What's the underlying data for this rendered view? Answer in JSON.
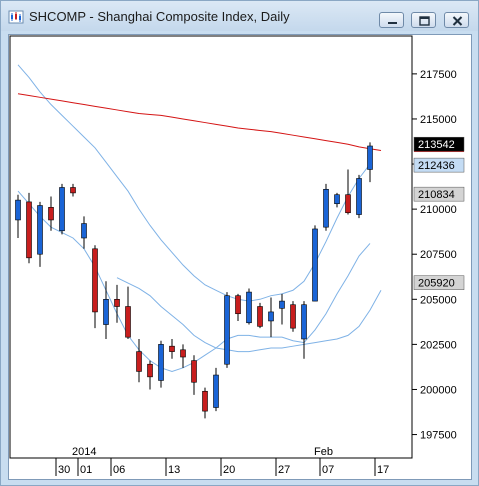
{
  "window": {
    "title": "SHCOMP - Shanghai Composite Index, Daily",
    "buttons": {
      "minimize": "minimize-icon",
      "restore": "restore-icon",
      "close": "close-icon"
    }
  },
  "chart_data": {
    "type": "candlestick",
    "ylim": [
      1962,
      2196
    ],
    "yticks": [
      197500,
      200000,
      202500,
      205000,
      207500,
      210000,
      212500,
      215000,
      217500
    ],
    "ytick_labels": [
      "197500",
      "200000",
      "202500",
      "205000",
      "207500",
      "210000",
      "212500",
      "215000",
      "217500"
    ],
    "price_tags": [
      {
        "label": "213542",
        "value": 2136.0,
        "bg": "#000000",
        "fg": "#ffffff"
      },
      {
        "label": "212436",
        "value": 2124.4,
        "bg": "#c4dcf4",
        "fg": "#000000"
      },
      {
        "label": "210834",
        "value": 2108.3,
        "bg": "#d4d4d4",
        "fg": "#000000"
      },
      {
        "label": "205920",
        "value": 2059.2,
        "bg": "#d4d4d4",
        "fg": "#000000"
      }
    ],
    "ma_red_marker": 2132.5,
    "x_labels": [
      {
        "i": 4,
        "text": "30"
      },
      {
        "i": 6,
        "text": "01"
      },
      {
        "i": 9,
        "text": "06"
      },
      {
        "i": 14,
        "text": "13"
      },
      {
        "i": 19,
        "text": "20"
      },
      {
        "i": 24,
        "text": "27"
      },
      {
        "i": 28,
        "text": "07"
      },
      {
        "i": 33,
        "text": "17"
      }
    ],
    "period_labels": [
      {
        "i": 6,
        "text": "2014"
      },
      {
        "i": 28,
        "text": "Feb"
      }
    ],
    "colors": {
      "up": "#1a64d6",
      "down": "#c81e1e",
      "ma_long": "#d41414",
      "band": "#7fb2e6"
    },
    "candles": [
      {
        "o": 2094,
        "h": 2108,
        "l": 2084,
        "c": 2105
      },
      {
        "o": 2104,
        "h": 2109,
        "l": 2070,
        "c": 2073
      },
      {
        "o": 2075,
        "h": 2104,
        "l": 2068,
        "c": 2102
      },
      {
        "o": 2101,
        "h": 2107,
        "l": 2088,
        "c": 2094
      },
      {
        "o": 2088,
        "h": 2114,
        "l": 2086,
        "c": 2112
      },
      {
        "o": 2112,
        "h": 2114,
        "l": 2107,
        "c": 2109
      },
      {
        "o": 2084,
        "h": 2096,
        "l": 2078,
        "c": 2092
      },
      {
        "o": 2078,
        "h": 2080,
        "l": 2034,
        "c": 2043
      },
      {
        "o": 2036,
        "h": 2060,
        "l": 2028,
        "c": 2050
      },
      {
        "o": 2050,
        "h": 2058,
        "l": 2037,
        "c": 2046
      },
      {
        "o": 2046,
        "h": 2057,
        "l": 2028,
        "c": 2029
      },
      {
        "o": 2021,
        "h": 2028,
        "l": 2004,
        "c": 2010
      },
      {
        "o": 2014,
        "h": 2016,
        "l": 2000,
        "c": 2007
      },
      {
        "o": 2005,
        "h": 2027,
        "l": 2001,
        "c": 2025
      },
      {
        "o": 2024,
        "h": 2028,
        "l": 2017,
        "c": 2021
      },
      {
        "o": 2022,
        "h": 2025,
        "l": 2012,
        "c": 2018
      },
      {
        "o": 2016,
        "h": 2019,
        "l": 1997,
        "c": 2004
      },
      {
        "o": 1999,
        "h": 2001,
        "l": 1984,
        "c": 1988
      },
      {
        "o": 1990,
        "h": 2012,
        "l": 1988,
        "c": 2008
      },
      {
        "o": 2014,
        "h": 2054,
        "l": 2012,
        "c": 2052
      },
      {
        "o": 2052,
        "h": 2053,
        "l": 2038,
        "c": 2042
      },
      {
        "o": 2037,
        "h": 2056,
        "l": 2036,
        "c": 2054
      },
      {
        "o": 2046,
        "h": 2048,
        "l": 2034,
        "c": 2035
      },
      {
        "o": 2038,
        "h": 2051,
        "l": 2029,
        "c": 2043
      },
      {
        "o": 2045,
        "h": 2053,
        "l": 2036,
        "c": 2049
      },
      {
        "o": 2047,
        "h": 2049,
        "l": 2032,
        "c": 2034
      },
      {
        "o": 2028,
        "h": 2049,
        "l": 2017,
        "c": 2047
      },
      {
        "o": 2049,
        "h": 2091,
        "l": 2049,
        "c": 2089
      },
      {
        "o": 2090,
        "h": 2114,
        "l": 2088,
        "c": 2111
      },
      {
        "o": 2103,
        "h": 2109,
        "l": 2101,
        "c": 2108
      },
      {
        "o": 2108,
        "h": 2122,
        "l": 2097,
        "c": 2098
      },
      {
        "o": 2097,
        "h": 2119,
        "l": 2095,
        "c": 2117
      },
      {
        "o": 2122,
        "h": 2137,
        "l": 2115,
        "c": 2135
      }
    ],
    "ma_long": [
      2164,
      2163,
      2162,
      2161,
      2160,
      2159,
      2158,
      2157,
      2156,
      2155,
      2154,
      2153,
      2152.5,
      2152,
      2151,
      2150,
      2149,
      2148,
      2147,
      2146,
      2145,
      2144.3,
      2143.6,
      2143,
      2142,
      2141,
      2140,
      2139,
      2138,
      2137,
      2136,
      2134.5,
      2133.5,
      2132.5
    ],
    "band_upper": [
      2180,
      2173,
      2165,
      2158,
      2152,
      2146,
      2140,
      2134,
      2126,
      2118,
      2110,
      2100,
      2091,
      2083,
      2076,
      2069,
      2063,
      2058,
      2055,
      2052,
      2050,
      2049,
      2050,
      2052,
      2053,
      2055,
      2060,
      2070,
      2082,
      2095,
      2107,
      2117,
      2125
    ],
    "band_lower": [
      2110,
      2103,
      2096,
      2090,
      2087,
      2084,
      2078,
      2068,
      2055,
      2042,
      2030,
      2022,
      2016,
      2012,
      2010,
      2012,
      2015,
      2019,
      2023,
      2028,
      2030,
      2030,
      2029,
      2029,
      2029,
      2027,
      2026,
      2033,
      2042,
      2053,
      2063,
      2074,
      2081
    ],
    "band_lower_ext": [
      2062,
      2059,
      2056,
      2052,
      2046,
      2041,
      2036,
      2030,
      2026,
      2023,
      2022,
      2021,
      2021,
      2022,
      2023,
      2023,
      2024,
      2025,
      2026,
      2027,
      2028,
      2030,
      2035,
      2044,
      2055
    ]
  }
}
